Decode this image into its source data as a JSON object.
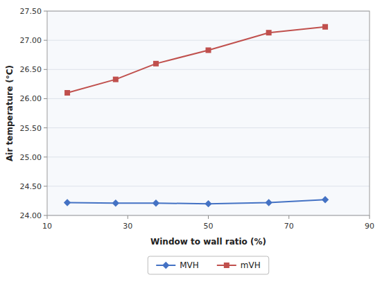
{
  "chart_data": {
    "type": "line",
    "x": [
      15,
      27,
      37,
      50,
      65,
      79
    ],
    "series": [
      {
        "name": "MVH",
        "color": "#4472c4",
        "marker": "diamond",
        "values": [
          24.22,
          24.21,
          24.21,
          24.2,
          24.22,
          24.27
        ]
      },
      {
        "name": "mVH",
        "color": "#c0504d",
        "marker": "square",
        "values": [
          26.1,
          26.33,
          26.6,
          26.83,
          27.13,
          27.23
        ]
      }
    ],
    "xlabel": "Window to wall ratio (%)",
    "ylabel": "Air temperature (°C)",
    "xlim": [
      10,
      90
    ],
    "ylim": [
      24.0,
      27.5
    ],
    "xticks": [
      10,
      30,
      50,
      70,
      90
    ],
    "yticks": [
      {
        "value": 24.0,
        "label": "24.00"
      },
      {
        "value": 24.5,
        "label": "24.50"
      },
      {
        "value": 25.0,
        "label": "25.00"
      },
      {
        "value": 25.5,
        "label": "25.50"
      },
      {
        "value": 26.0,
        "label": "26.00"
      },
      {
        "value": 26.5,
        "label": "26.50"
      },
      {
        "value": 27.0,
        "label": "27.00"
      },
      {
        "value": 27.5,
        "label": "27.50"
      }
    ],
    "grid": "y",
    "legend": "bottom"
  }
}
